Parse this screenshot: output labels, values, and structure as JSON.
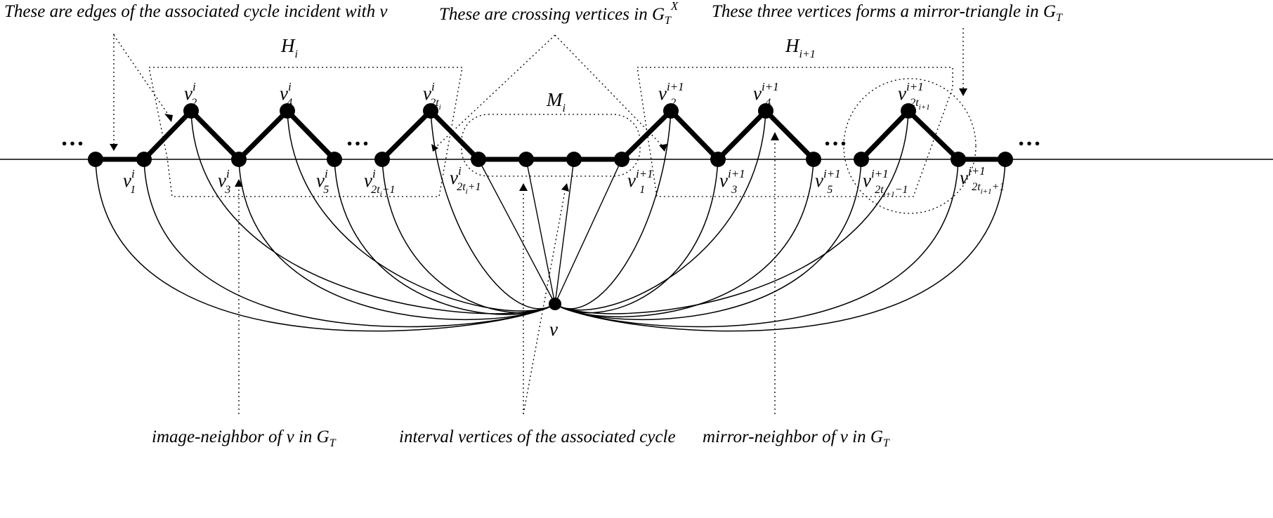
{
  "annotations": {
    "edges_of_cycle": "These are edges of the associated cycle incident with v",
    "crossing_vertices": "These are crossing vertices in G",
    "crossing_vertices_sub": "T",
    "crossing_vertices_sup": "X",
    "mirror_triangle": "These three vertices forms a mirror-triangle in G",
    "mirror_triangle_sub": "T",
    "image_neighbor": "image-neighbor of v in G",
    "image_neighbor_sub": "T",
    "interval_vertices": "interval vertices of the associated cycle",
    "mirror_neighbor": "mirror-neighbor of v in G",
    "mirror_neighbor_sub": "T"
  },
  "groups": {
    "h_i": {
      "main": "H",
      "sub": "i"
    },
    "h_i1": {
      "main": "H",
      "sub": "i+1"
    },
    "m_i": {
      "main": "M",
      "sub": "i"
    }
  },
  "ellipsis": "…",
  "center_vertex": "v",
  "vertex_labels": [
    {
      "key": "v1i",
      "main": "v",
      "sup": "i",
      "sub": "1",
      "subsub": ""
    },
    {
      "key": "v2i",
      "main": "v",
      "sup": "i",
      "sub": "2",
      "subsub": ""
    },
    {
      "key": "v3i",
      "main": "v",
      "sup": "i",
      "sub": "3",
      "subsub": ""
    },
    {
      "key": "v4i",
      "main": "v",
      "sup": "i",
      "sub": "4",
      "subsub": ""
    },
    {
      "key": "v5i",
      "main": "v",
      "sup": "i",
      "sub": "5",
      "subsub": ""
    },
    {
      "key": "v2ti-1",
      "main": "v",
      "sup": "i",
      "sub": "2t",
      "subsub": "i",
      "tail": "−1"
    },
    {
      "key": "v2ti",
      "main": "v",
      "sup": "i",
      "sub": "2t",
      "subsub": "i",
      "tail": ""
    },
    {
      "key": "v2ti+1",
      "main": "v",
      "sup": "i",
      "sub": "2t",
      "subsub": "i",
      "tail": "+1"
    },
    {
      "key": "v1i1",
      "main": "v",
      "sup": "i+1",
      "sub": "1",
      "subsub": ""
    },
    {
      "key": "v2i1",
      "main": "v",
      "sup": "i+1",
      "sub": "2",
      "subsub": ""
    },
    {
      "key": "v3i1",
      "main": "v",
      "sup": "i+1",
      "sub": "3",
      "subsub": ""
    },
    {
      "key": "v4i1",
      "main": "v",
      "sup": "i+1",
      "sub": "4",
      "subsub": ""
    },
    {
      "key": "v5i1",
      "main": "v",
      "sup": "i+1",
      "sub": "5",
      "subsub": ""
    },
    {
      "key": "v2ti1-1",
      "main": "v",
      "sup": "i+1",
      "sub": "2t",
      "subsub": "i+1",
      "tail": "−1"
    },
    {
      "key": "v2ti1",
      "main": "v",
      "sup": "i+1",
      "sub": "2t",
      "subsub": "i+1",
      "tail": ""
    },
    {
      "key": "v2ti1+1",
      "main": "v",
      "sup": "i+1",
      "sub": "2t",
      "subsub": "i+1",
      "tail": "+1"
    }
  ]
}
